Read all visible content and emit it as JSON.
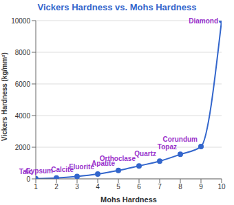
{
  "chart_data": {
    "type": "line",
    "title": "Vickers Hardness vs. Mohs Hardness",
    "x_label": "Mohs Hardness",
    "y_label": "Vickers Hardness (kg/mm²)",
    "x": [
      1,
      2,
      3,
      4,
      5,
      6,
      7,
      8,
      9,
      10
    ],
    "values": [
      10,
      50,
      150,
      300,
      530,
      820,
      1120,
      1550,
      2040,
      10000
    ],
    "annotations": [
      "Talc",
      "Gypsum",
      "Calcite",
      "Fluorite",
      "Apatite",
      "Orthoclase",
      "Quartz",
      "Topaz",
      "Corundum",
      "Diamond"
    ],
    "color": "#3366cc",
    "marker": "circle",
    "line_style": "solid",
    "xlim": [
      1,
      10
    ],
    "xticks": [
      1,
      2,
      3,
      4,
      5,
      6,
      7,
      8,
      9,
      10
    ],
    "ylim": [
      0,
      10000
    ],
    "yticks": [
      0,
      2000,
      4000,
      6000,
      8000,
      10000
    ],
    "grid": true
  }
}
